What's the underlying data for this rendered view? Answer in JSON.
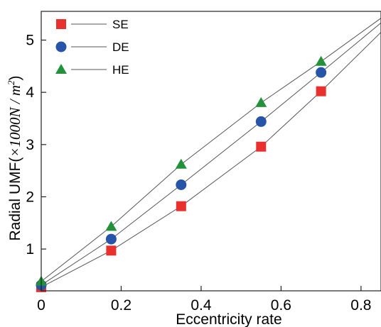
{
  "chart_data": {
    "type": "line",
    "xlabel": "Eccentricity rate",
    "ylabel": {
      "prefix": "Radial UMF(",
      "factor": "×1000",
      "unit_n": "N",
      "slash": " / ",
      "unit_m": "m",
      "exponent": "2",
      "suffix": ")"
    },
    "xlim": [
      0,
      0.85
    ],
    "ylim": [
      0.2,
      5.55
    ],
    "xticks": [
      "0",
      "0.2",
      "0.4",
      "0.6",
      "0.8"
    ],
    "xtick_values": [
      0,
      0.2,
      0.4,
      0.6,
      0.8
    ],
    "yticks": [
      "1",
      "2",
      "3",
      "4",
      "5"
    ],
    "ytick_values": [
      1,
      2,
      3,
      4,
      5
    ],
    "grid": false,
    "legend_position": "top-left",
    "series": [
      {
        "name": "SE",
        "marker": "square",
        "color": "#e8302e",
        "x": [
          0,
          0.175,
          0.35,
          0.55,
          0.7
        ],
        "y": [
          0.27,
          0.97,
          1.82,
          2.96,
          4.02
        ],
        "line_x": [
          0,
          0.175,
          0.35,
          0.55,
          0.7,
          0.85
        ],
        "line_y": [
          0.27,
          0.97,
          1.82,
          2.96,
          4.02,
          5.15
        ]
      },
      {
        "name": "DE",
        "marker": "circle",
        "color": "#2554a8",
        "x": [
          0,
          0.175,
          0.35,
          0.55,
          0.7
        ],
        "y": [
          0.31,
          1.19,
          2.23,
          3.44,
          4.38
        ],
        "line_x": [
          0,
          0.175,
          0.35,
          0.55,
          0.7,
          0.85
        ],
        "line_y": [
          0.31,
          1.19,
          2.23,
          3.44,
          4.38,
          5.33
        ]
      },
      {
        "name": "HE",
        "marker": "triangle",
        "color": "#22913a",
        "x": [
          0,
          0.175,
          0.35,
          0.55,
          0.7
        ],
        "y": [
          0.38,
          1.43,
          2.62,
          3.8,
          4.59
        ],
        "line_x": [
          0,
          0.175,
          0.35,
          0.55,
          0.7,
          0.85
        ],
        "line_y": [
          0.38,
          1.43,
          2.62,
          3.8,
          4.59,
          5.42
        ]
      }
    ]
  }
}
